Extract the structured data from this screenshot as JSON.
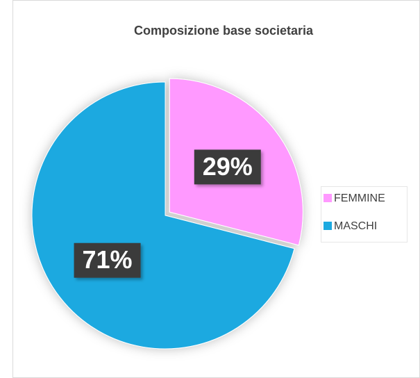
{
  "chart_data": {
    "type": "pie",
    "title": "Composizione base societaria",
    "categories": [
      "FEMMINE",
      "MASCHI"
    ],
    "values": [
      29,
      71
    ],
    "value_labels": [
      "29%",
      "71%"
    ],
    "colors": [
      "#ff99ff",
      "#1ba9e0"
    ],
    "explode": [
      true,
      false
    ],
    "legend": "right"
  }
}
